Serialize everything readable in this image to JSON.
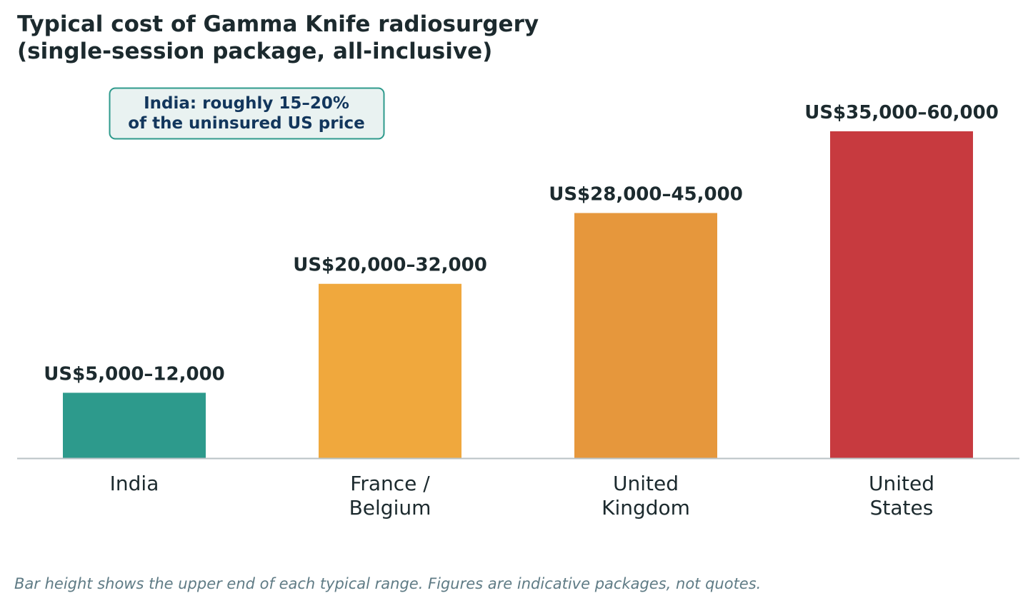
{
  "title_line1": "Typical cost of Gamma Knife radiosurgery",
  "title_line2": "(single-session package, all-inclusive)",
  "annotation": {
    "line1": "India: roughly 15–20%",
    "line2": "of the uninsured US price"
  },
  "footnote": "Bar height shows the upper end of each typical range. Figures are indicative packages, not quotes.",
  "colors": {
    "text": "#1c2a2e",
    "annotation_text": "#12365c",
    "annotation_border": "#2e9a8c",
    "annotation_fill": "#e9f2f1",
    "axis": "#b9c2c6"
  },
  "chart_data": {
    "type": "bar",
    "categories": [
      [
        "India"
      ],
      [
        "France /",
        "Belgium"
      ],
      [
        "United",
        "Kingdom"
      ],
      [
        "United",
        "States"
      ]
    ],
    "values": [
      12000,
      32000,
      45000,
      60000
    ],
    "ranges": [
      [
        5000,
        12000
      ],
      [
        20000,
        32000
      ],
      [
        28000,
        45000
      ],
      [
        35000,
        60000
      ]
    ],
    "value_labels": [
      "US$5,000–12,000",
      "US$20,000–32,000",
      "US$28,000–45,000",
      "US$35,000–60,000"
    ],
    "bar_colors": [
      "#2d9a8c",
      "#f0a83d",
      "#e6973c",
      "#c73a3f"
    ],
    "ylim": [
      0,
      60000
    ],
    "grid": false,
    "xlabel": "",
    "ylabel": ""
  }
}
